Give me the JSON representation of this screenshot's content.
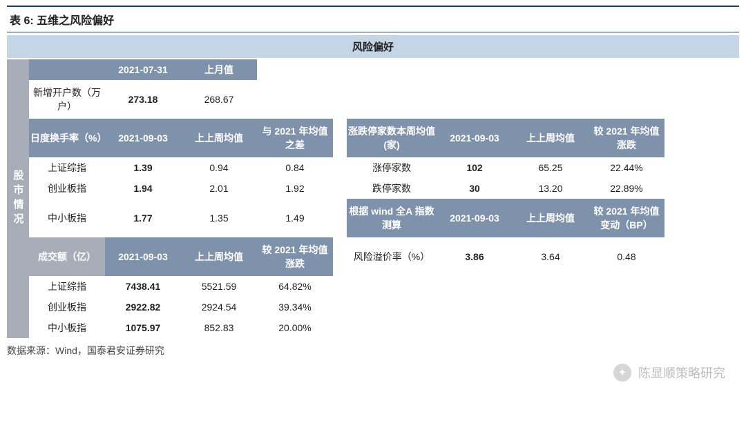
{
  "title": "表 6:  五维之风险偏好",
  "banner": "风险偏好",
  "sidebar_label": "股市情况",
  "section1": {
    "headers": [
      "",
      "2021-07-31",
      "上月值"
    ],
    "row_label": "新增开户数（万户）",
    "values": [
      "273.18",
      "268.67"
    ]
  },
  "section2": {
    "headers": [
      "日度换手率（%）",
      "2021-09-03",
      "上上周均值",
      "与 2021 年均值之差"
    ],
    "rows": [
      {
        "label": "上证综指",
        "v": [
          "1.39",
          "0.94",
          "0.84"
        ]
      },
      {
        "label": "创业板指",
        "v": [
          "1.94",
          "2.01",
          "1.92"
        ]
      },
      {
        "label": "中小板指",
        "v": [
          "1.77",
          "1.35",
          "1.49"
        ]
      }
    ]
  },
  "section3": {
    "headers": [
      "成交额（亿）",
      "2021-09-03",
      "上上周均值",
      "较 2021 年均值涨跌"
    ],
    "rows": [
      {
        "label": "上证综指",
        "v": [
          "7438.41",
          "5521.59",
          "64.82%"
        ]
      },
      {
        "label": "创业板指",
        "v": [
          "2922.82",
          "2924.54",
          "39.34%"
        ]
      },
      {
        "label": "中小板指",
        "v": [
          "1075.97",
          "852.83",
          "20.00%"
        ]
      }
    ]
  },
  "section4": {
    "headers": [
      "涨跌停家数本周均值(家)",
      "2021-09-03",
      "上上周均值",
      "较 2021 年均值涨跌"
    ],
    "rows": [
      {
        "label": "涨停家数",
        "v": [
          "102",
          "65.25",
          "22.44%"
        ]
      },
      {
        "label": "跌停家数",
        "v": [
          "30",
          "13.20",
          "22.89%"
        ]
      }
    ]
  },
  "section5": {
    "headers": [
      "根据 wind 全A 指数测算",
      "2021-09-03",
      "上上周均值",
      "较 2021 年均值变动（BP）"
    ],
    "row_label": "风险溢价率（%）",
    "values": [
      "3.86",
      "3.64",
      "0.48"
    ]
  },
  "source": "数据来源：Wind，国泰君安证券研究",
  "watermark": "陈显顺策略研究",
  "colors": {
    "border_dark": "#1a3a6a",
    "banner_bg": "#c4d6e5",
    "header_bg": "#7f92ab",
    "grey_bg": "#a7aeb8",
    "text": "#222222",
    "watermark": "#b0b0b0"
  }
}
